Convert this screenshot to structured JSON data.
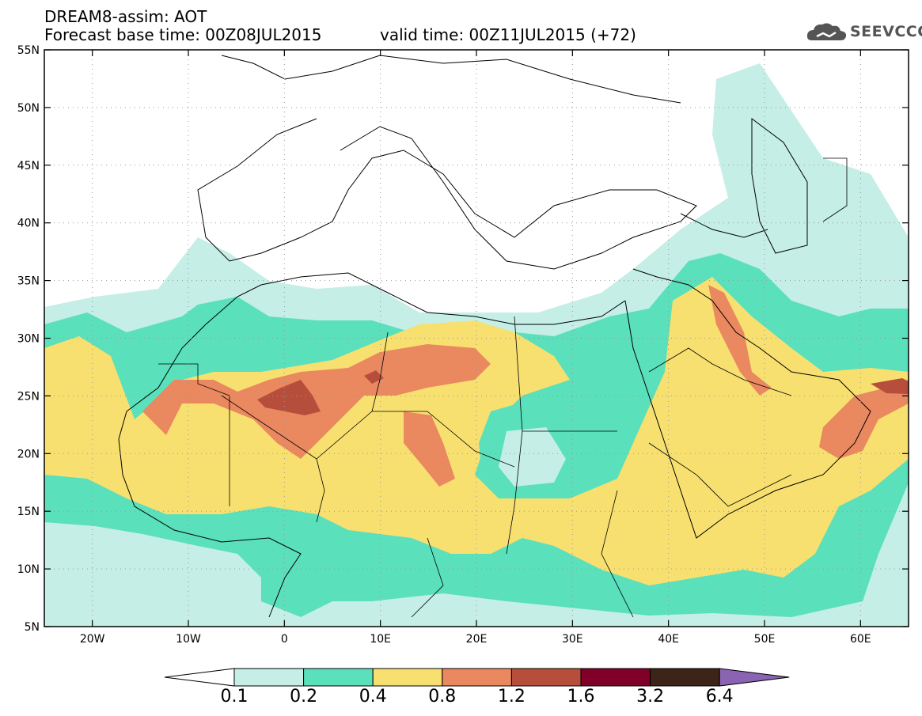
{
  "header": {
    "title": "DREAM8-assim: AOT",
    "base_time": "Forecast base time: 00Z08JUL2015",
    "valid_time": "valid time: 00Z11JUL2015 (+72)"
  },
  "logo": {
    "text": "SEEVCCC",
    "icon": "cloud-logo-icon",
    "color": "#555555"
  },
  "map": {
    "lat_range": [
      5,
      55
    ],
    "lon_range": [
      -25,
      65
    ],
    "lat_ticks": [
      "55N",
      "50N",
      "45N",
      "40N",
      "35N",
      "30N",
      "25N",
      "20N",
      "15N",
      "10N",
      "5N"
    ],
    "lon_ticks": [
      "20W",
      "10W",
      "0",
      "10E",
      "20E",
      "30E",
      "40E",
      "50E",
      "60E"
    ],
    "grid": "dotted"
  },
  "colorbar": {
    "labels": [
      "0.1",
      "0.2",
      "0.4",
      "0.8",
      "1.2",
      "1.6",
      "3.2",
      "6.4"
    ],
    "colors": [
      "#ffffff",
      "#c4eee6",
      "#5ae0bb",
      "#f7e070",
      "#ea8860",
      "#b74e3c",
      "#80002a",
      "#3c2418",
      "#8a64b2"
    ]
  }
}
